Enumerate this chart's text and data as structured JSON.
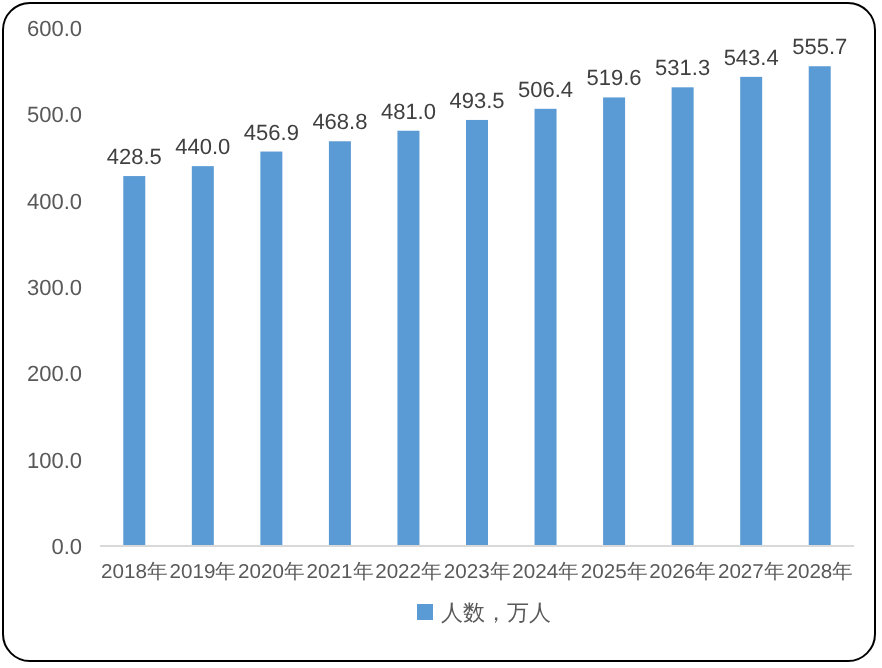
{
  "chart_data": {
    "type": "bar",
    "categories": [
      "2018年",
      "2019年",
      "2020年",
      "2021年",
      "2022年",
      "2023年",
      "2024年",
      "2025年",
      "2026年",
      "2027年",
      "2028年"
    ],
    "series": [
      {
        "name": "人数，万人",
        "color": "#5b9bd5",
        "values": [
          428.5,
          440.0,
          456.9,
          468.8,
          481.0,
          493.5,
          506.4,
          519.6,
          531.3,
          543.4,
          555.7
        ],
        "value_labels": [
          "428.5",
          "440.0",
          "456.9",
          "468.8",
          "481.0",
          "493.5",
          "506.4",
          "519.6",
          "531.3",
          "543.4",
          "555.7"
        ]
      }
    ],
    "ylim": [
      0,
      600
    ],
    "yticks": [
      {
        "value": 0,
        "label": "0.0"
      },
      {
        "value": 100,
        "label": "100.0"
      },
      {
        "value": 200,
        "label": "200.0"
      },
      {
        "value": 300,
        "label": "300.0"
      },
      {
        "value": 400,
        "label": "400.0"
      },
      {
        "value": 500,
        "label": "500.0"
      },
      {
        "value": 600,
        "label": "600.0"
      }
    ],
    "legend": "bottom"
  }
}
